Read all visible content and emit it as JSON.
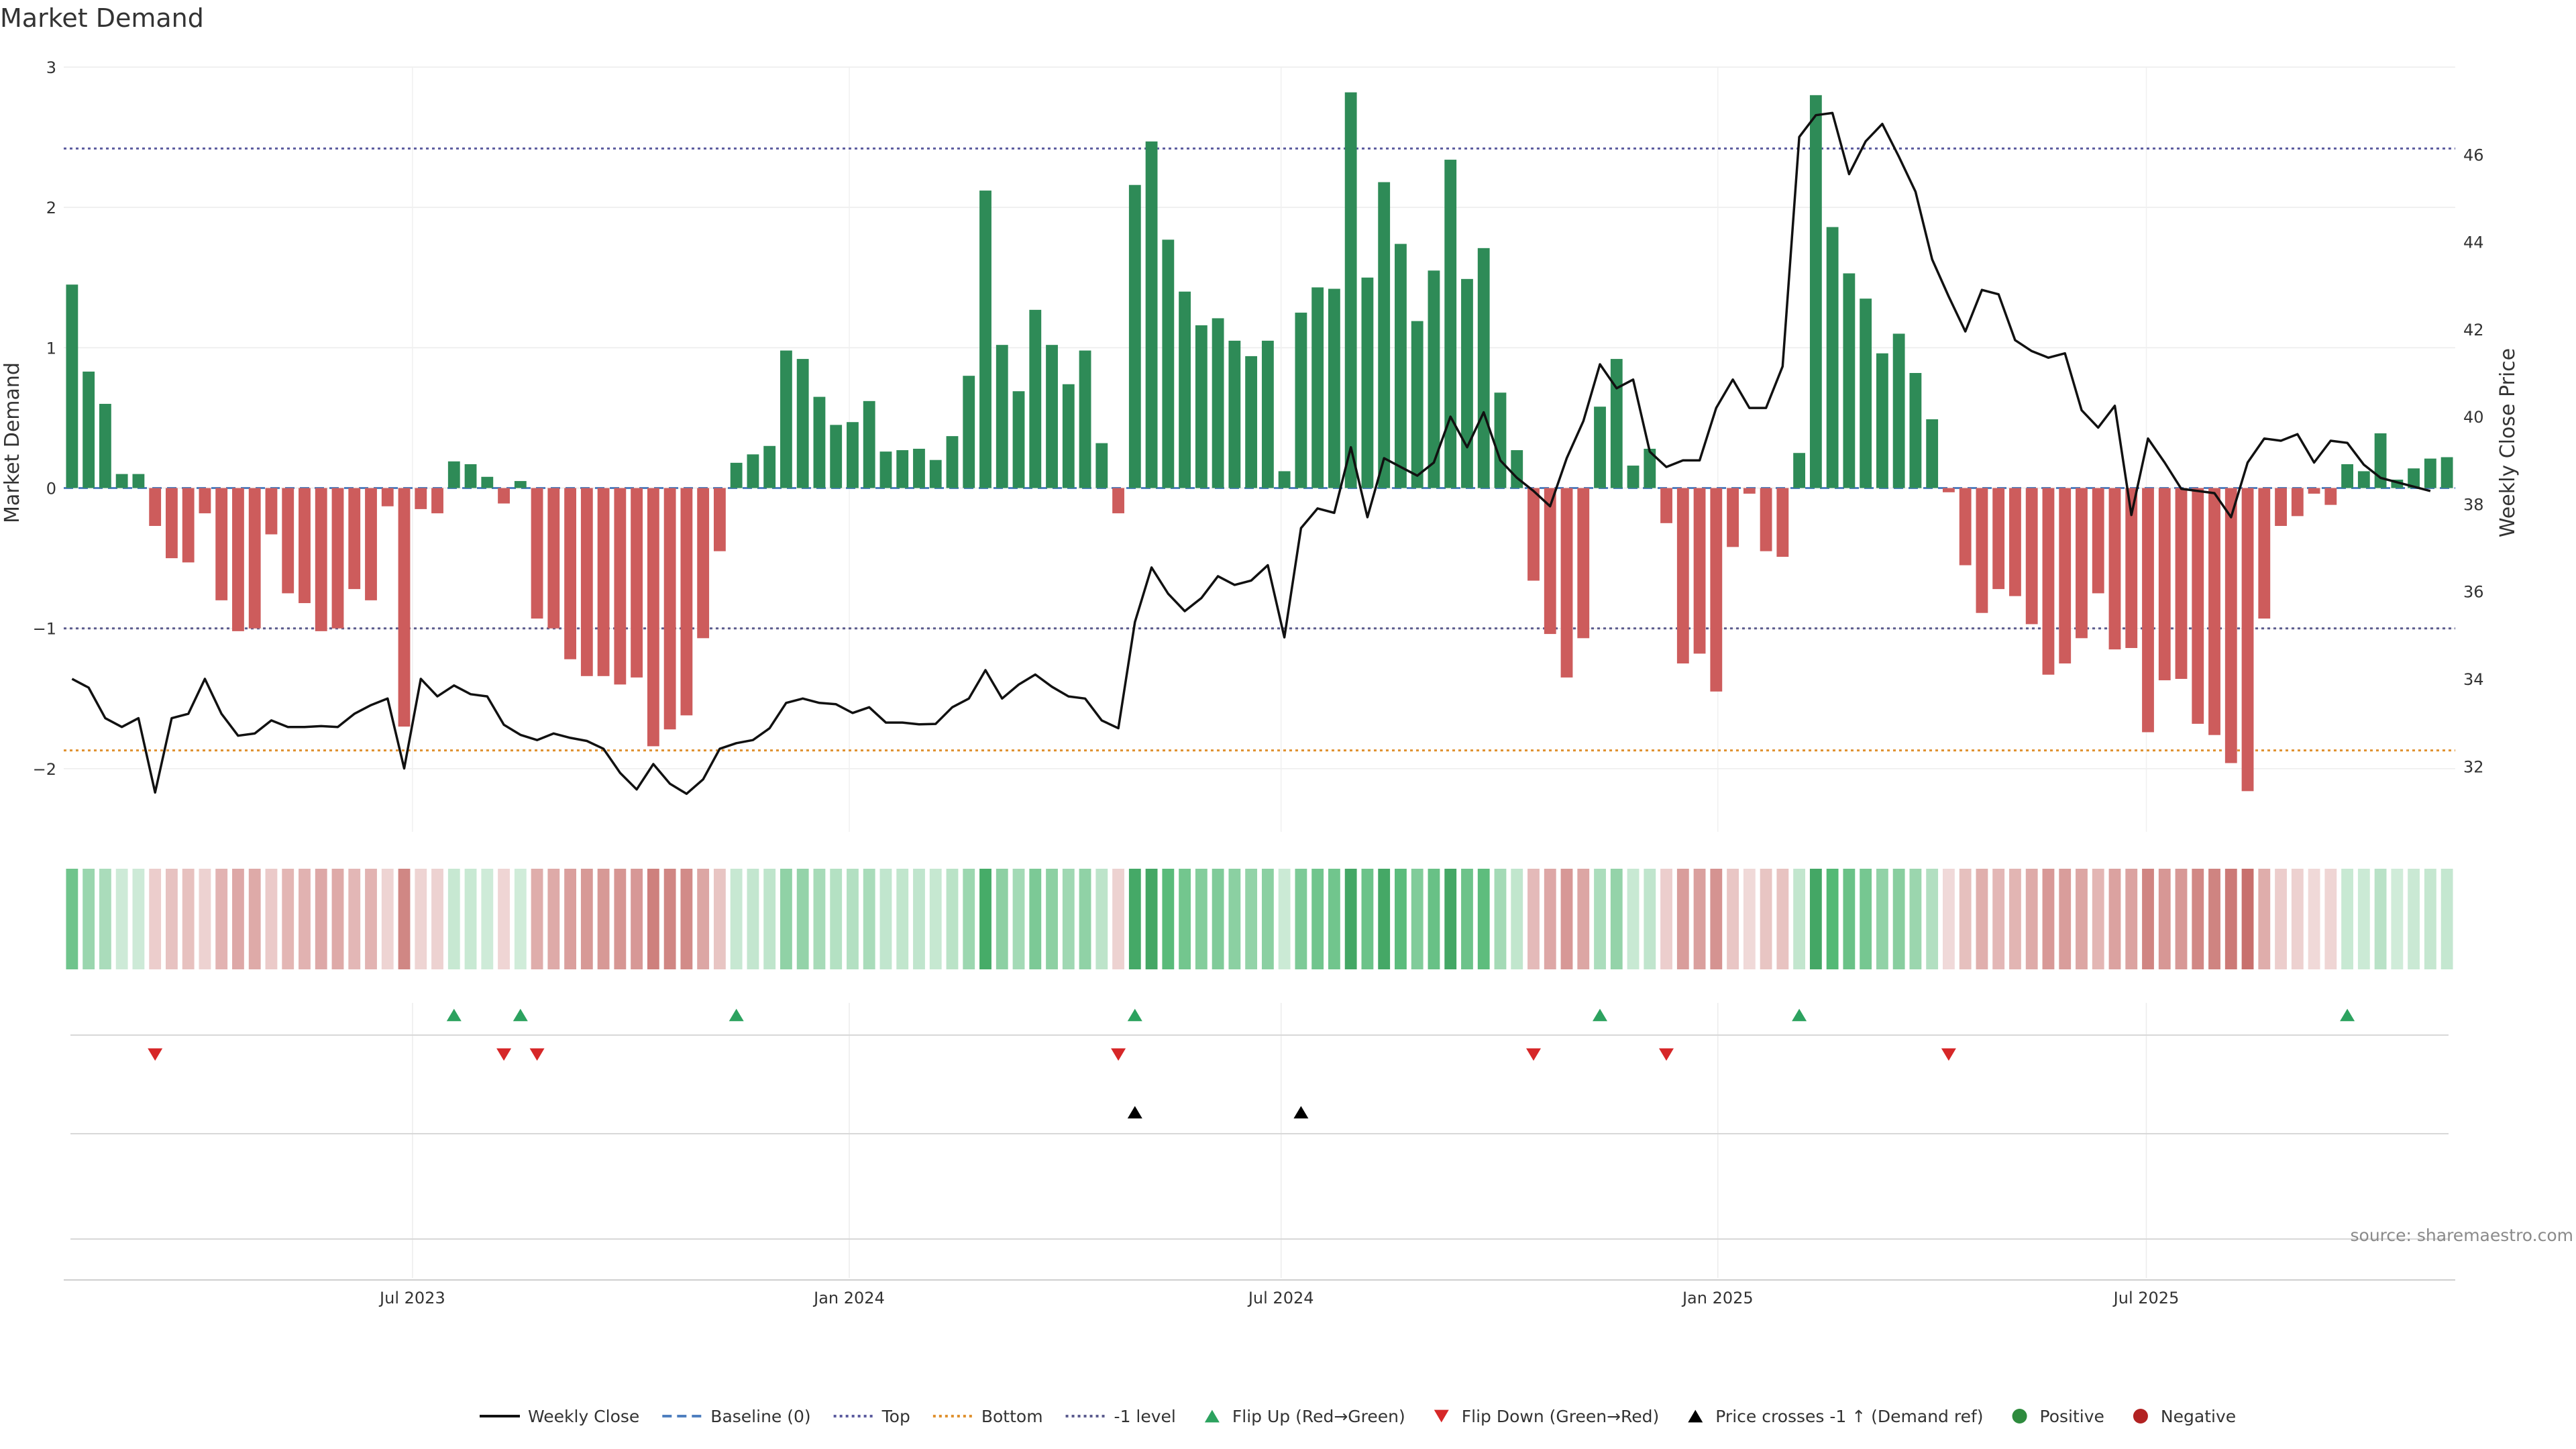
{
  "chart_data": {
    "type": "bar",
    "title": "Market Demand",
    "ylabel": "Market Demand",
    "y2label": "Weekly Close Price",
    "ylim": [
      -2.45,
      3.0
    ],
    "y2lim": [
      30.5,
      48.0
    ],
    "yticks": [
      -2,
      -1,
      0,
      1,
      2,
      3
    ],
    "ytick_labels": [
      "−2",
      "−1",
      "0",
      "1",
      "2",
      "3"
    ],
    "y2ticks": [
      32,
      34,
      36,
      38,
      40,
      42,
      44,
      46
    ],
    "y2tick_labels": [
      "32",
      "34",
      "36",
      "38",
      "40",
      "42",
      "44",
      "46"
    ],
    "x_ticks": [
      {
        "week": 21,
        "label": "Jul 2023"
      },
      {
        "week": 47.3,
        "label": "Jan 2024"
      },
      {
        "week": 73.3,
        "label": "Jul 2024"
      },
      {
        "week": 99.6,
        "label": "Jan 2025"
      },
      {
        "week": 125.4,
        "label": "Jul 2025"
      }
    ],
    "reference_lines": {
      "top": 2.42,
      "bottom": -1.87,
      "minus_one": -1.0,
      "baseline": 0
    },
    "demand": [
      1.45,
      0.83,
      0.6,
      0.1,
      0.1,
      -0.27,
      -0.5,
      -0.53,
      -0.18,
      -0.8,
      -1.02,
      -1.0,
      -0.33,
      -0.75,
      -0.82,
      -1.02,
      -1.0,
      -0.72,
      -0.8,
      -0.13,
      -1.7,
      -0.15,
      -0.18,
      0.19,
      0.17,
      0.08,
      -0.11,
      0.05,
      -0.93,
      -1.0,
      -1.22,
      -1.34,
      -1.34,
      -1.4,
      -1.35,
      -1.84,
      -1.72,
      -1.62,
      -1.07,
      -0.45,
      0.18,
      0.24,
      0.3,
      0.98,
      0.92,
      0.65,
      0.45,
      0.47,
      0.62,
      0.26,
      0.27,
      0.28,
      0.2,
      0.37,
      0.8,
      2.12,
      1.02,
      0.69,
      1.27,
      1.02,
      0.74,
      0.98,
      0.32,
      -0.18,
      2.16,
      2.47,
      1.77,
      1.4,
      1.16,
      1.21,
      1.05,
      0.94,
      1.05,
      0.12,
      1.25,
      1.43,
      1.42,
      2.82,
      1.5,
      2.18,
      1.74,
      1.19,
      1.55,
      2.34,
      1.49,
      1.71,
      0.68,
      0.27,
      -0.66,
      -1.04,
      -1.35,
      -1.07,
      0.58,
      0.92,
      0.16,
      0.28,
      -0.25,
      -1.25,
      -1.18,
      -1.45,
      -0.42,
      -0.04,
      -0.45,
      -0.49,
      0.25,
      2.8,
      1.86,
      1.53,
      1.35,
      0.96,
      1.1,
      0.82,
      0.49,
      -0.03,
      -0.55,
      -0.89,
      -0.72,
      -0.77,
      -0.97,
      -1.33,
      -1.25,
      -1.07,
      -0.75,
      -1.15,
      -1.14,
      -1.74,
      -1.37,
      -1.36,
      -1.68,
      -1.76,
      -1.96,
      -2.16,
      -0.93,
      -0.27,
      -0.2,
      -0.04,
      -0.12,
      0.17,
      0.12,
      0.39,
      0.06,
      0.14,
      0.21,
      0.22
    ],
    "weekly_close": [
      34.0,
      33.8,
      33.1,
      32.9,
      33.1,
      31.4,
      33.1,
      33.2,
      34.0,
      33.2,
      32.7,
      32.75,
      33.05,
      32.9,
      32.9,
      32.92,
      32.9,
      33.2,
      33.4,
      33.55,
      31.95,
      34.0,
      33.6,
      33.85,
      33.65,
      33.6,
      32.95,
      32.72,
      32.6,
      32.75,
      32.65,
      32.58,
      32.4,
      31.85,
      31.47,
      32.05,
      31.6,
      31.37,
      31.7,
      32.4,
      32.53,
      32.6,
      32.87,
      33.45,
      33.55,
      33.45,
      33.42,
      33.22,
      33.35,
      33.0,
      33.0,
      32.96,
      32.97,
      33.35,
      33.55,
      34.2,
      33.55,
      33.87,
      34.1,
      33.82,
      33.6,
      33.55,
      33.05,
      32.87,
      35.3,
      36.55,
      35.95,
      35.55,
      35.85,
      36.35,
      36.15,
      36.25,
      36.6,
      34.95,
      37.45,
      37.9,
      37.8,
      39.3,
      37.7,
      39.05,
      38.85,
      38.65,
      38.95,
      40.0,
      39.3,
      40.1,
      39.0,
      38.6,
      38.3,
      37.95,
      39.05,
      39.9,
      41.2,
      40.65,
      40.85,
      39.2,
      38.85,
      39.0,
      39.0,
      40.2,
      40.85,
      40.2,
      40.2,
      41.15,
      46.4,
      46.9,
      46.95,
      45.55,
      46.3,
      46.7,
      45.95,
      45.15,
      43.6,
      42.75,
      41.95,
      42.9,
      42.8,
      41.75,
      41.5,
      41.35,
      41.45,
      40.15,
      39.75,
      40.25,
      37.75,
      39.5,
      38.95,
      38.35,
      38.3,
      38.25,
      37.7,
      38.95,
      39.5,
      39.45,
      39.6,
      38.95,
      39.45,
      39.4,
      38.9,
      38.6,
      38.5,
      38.4,
      38.3
    ],
    "flip_up_weeks": [
      23,
      27,
      40,
      64,
      92,
      104,
      137
    ],
    "flip_down_weeks": [
      5,
      26,
      28,
      63,
      88,
      96,
      113
    ],
    "price_cross_weeks": [
      64,
      74
    ],
    "legend": [
      {
        "type": "line",
        "label": "Weekly Close",
        "color": "#111111"
      },
      {
        "type": "dash",
        "label": "Baseline (0)",
        "color": "#4f7fbf"
      },
      {
        "type": "dot",
        "label": "Top",
        "color": "#5b5b9e"
      },
      {
        "type": "dot",
        "label": "Bottom",
        "color": "#e0912f"
      },
      {
        "type": "dot",
        "label": "-1 level",
        "color": "#5b5b8e"
      },
      {
        "type": "tri-up",
        "label": "Flip Up (Red→Green)",
        "color": "#2ca25f"
      },
      {
        "type": "tri-down",
        "label": "Flip Down (Green→Red)",
        "color": "#d62728"
      },
      {
        "type": "tri-up",
        "label": "Price crosses -1 ↑ (Demand ref)",
        "color": "#000000"
      },
      {
        "type": "circle",
        "label": "Positive",
        "color": "#2e8b3e"
      },
      {
        "type": "circle",
        "label": "Negative",
        "color": "#b22222"
      }
    ],
    "source": "source: sharemaestro.com",
    "colors": {
      "positive": "#2e8b57",
      "negative": "#cd5c5c",
      "price": "#111111"
    }
  }
}
